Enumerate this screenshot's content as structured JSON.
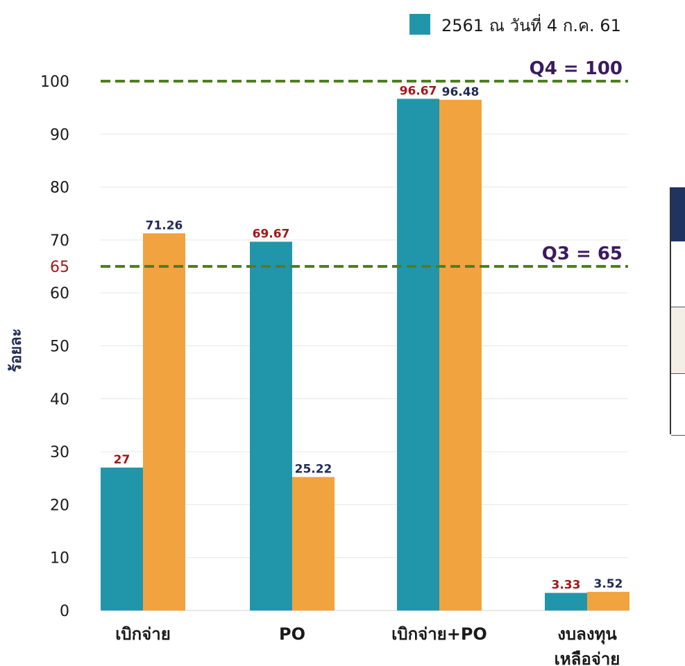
{
  "colors": {
    "series1": "#2196aa",
    "series2": "#f1a33f",
    "grid": "#e6e6e6",
    "ref_line": "#4f7f1f",
    "label_red": "#a01818",
    "label_dark": "#1f2a55"
  },
  "legend": {
    "label": "2561 ณ วันที่ 4 ก.ค. 61"
  },
  "chart_data": {
    "type": "bar",
    "categories": [
      [
        "เบิกจ่าย"
      ],
      [
        "PO"
      ],
      [
        "เบิกจ่าย+PO"
      ],
      [
        "งบลงทุน",
        "เหลือจ่าย"
      ]
    ],
    "series": [
      {
        "name": "2561 ณ วันที่ 4 ก.ค. 61",
        "values": [
          27,
          69.67,
          96.67,
          3.33
        ],
        "labels": [
          "27",
          "69.67",
          "96.67",
          "3.33"
        ],
        "color": "#2196aa"
      },
      {
        "values": [
          71.26,
          25.22,
          96.48,
          3.52
        ],
        "labels": [
          "71.26",
          "25.22",
          "96.48",
          "3.52"
        ],
        "color": "#f1a33f"
      }
    ],
    "ylabel": "ร้อยละ",
    "ylim": [
      0,
      100
    ],
    "yticks": [
      0,
      10,
      20,
      30,
      40,
      50,
      60,
      70,
      80,
      90,
      100
    ],
    "extra_tick": "65",
    "reference_lines": [
      {
        "value": 100,
        "label": "Q4 = 100"
      },
      {
        "value": 65,
        "label": "Q3 = 65"
      }
    ],
    "grid": true,
    "legend_position": "top-right"
  }
}
